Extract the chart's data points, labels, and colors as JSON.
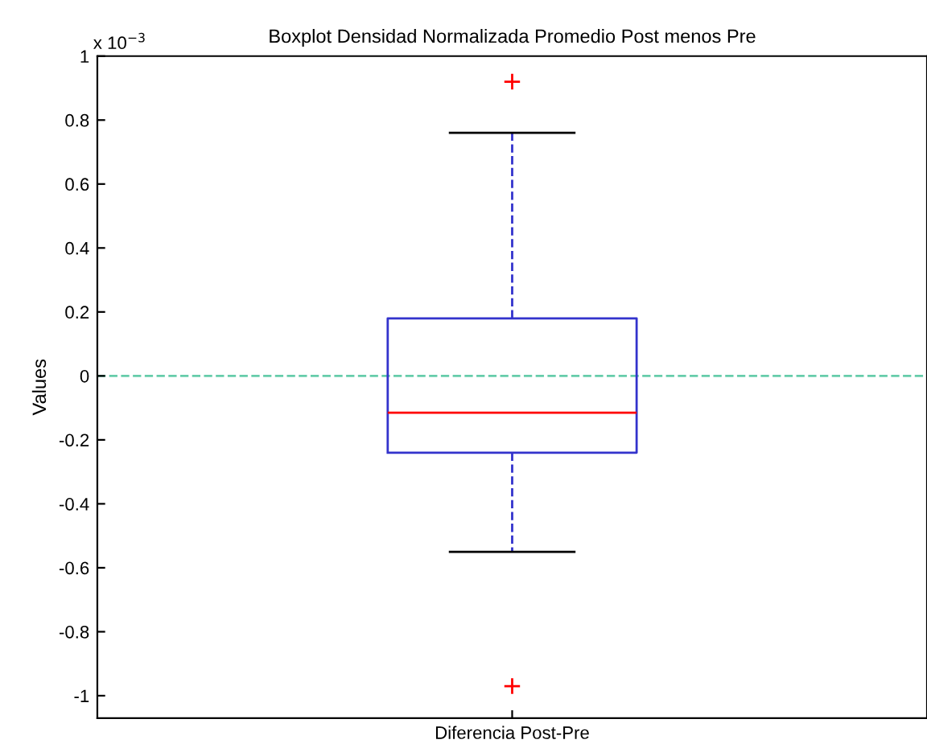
{
  "chart_data": {
    "type": "box",
    "title": "Boxplot Densidad Normalizada Promedio Post menos Pre",
    "ylabel": "Values",
    "categories": [
      "Diferencia Post-Pre"
    ],
    "boxes": [
      {
        "low": -0.55,
        "q1": -0.24,
        "median": -0.115,
        "q3": 0.18,
        "high": 0.76,
        "outliers": [
          0.92,
          -0.97
        ]
      }
    ],
    "color": "#3333cc",
    "marker": "cross",
    "ylim": [
      -1.07,
      1
    ],
    "yticks": [
      -1,
      -0.8,
      -0.6,
      -0.4,
      -0.2,
      0,
      0.2,
      0.4,
      0.6,
      0.8,
      1
    ],
    "ref_lines": [
      {
        "axis": "y",
        "value": 0,
        "color": "#66ccaa",
        "line_style": "dashed"
      }
    ],
    "annotations": [
      "x 10$^{−3}$"
    ],
    "grid": false
  }
}
